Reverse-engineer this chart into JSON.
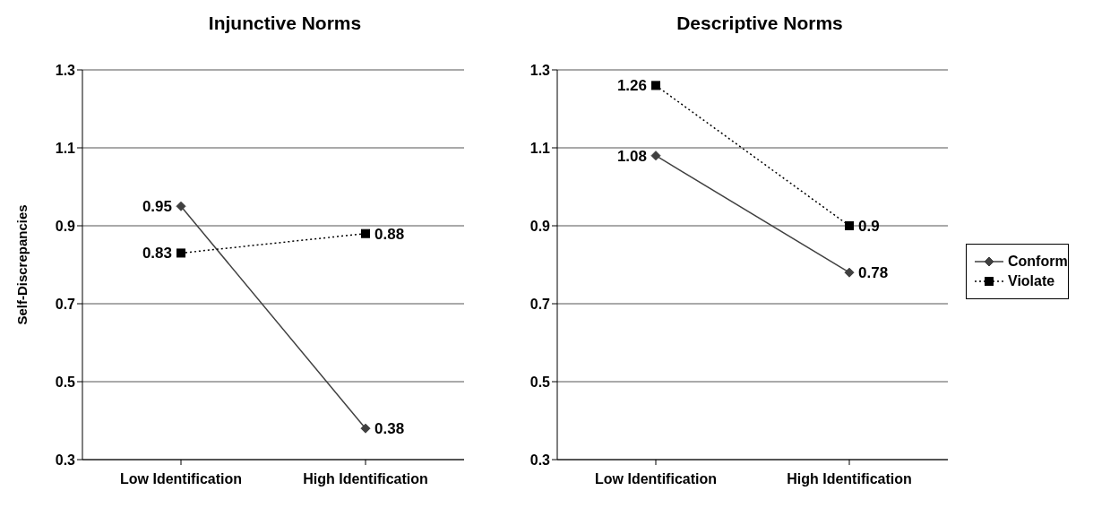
{
  "chart_data": [
    {
      "type": "line",
      "title": "Injunctive Norms",
      "ylabel": "Self-Discrepancies",
      "categories": [
        "Low Identification",
        "High Identification"
      ],
      "ylim": [
        0.3,
        1.3
      ],
      "yticks": [
        0.3,
        0.5,
        0.7,
        0.9,
        1.1,
        1.3
      ],
      "grid": "y",
      "legend": false,
      "data_labels": true,
      "series": [
        {
          "color": "#404040",
          "marker": "diamond",
          "line_style": "solid",
          "values": [
            0.95,
            0.38
          ]
        },
        {
          "color": "#000000",
          "marker": "square",
          "line_style": "dotted",
          "values": [
            0.83,
            0.88
          ]
        }
      ]
    },
    {
      "type": "line",
      "title": "Descriptive Norms",
      "categories": [
        "Low Identification",
        "High Identification"
      ],
      "ylim": [
        0.3,
        1.3
      ],
      "yticks": [
        0.3,
        0.5,
        0.7,
        0.9,
        1.1,
        1.3
      ],
      "grid": "y",
      "legend": "right",
      "data_labels": true,
      "series": [
        {
          "name": "Conform",
          "color": "#404040",
          "marker": "diamond",
          "line_style": "solid",
          "values": [
            1.08,
            0.78
          ]
        },
        {
          "name": "Violate",
          "color": "#000000",
          "marker": "square",
          "line_style": "dotted",
          "values": [
            1.26,
            0.9
          ]
        }
      ]
    }
  ]
}
